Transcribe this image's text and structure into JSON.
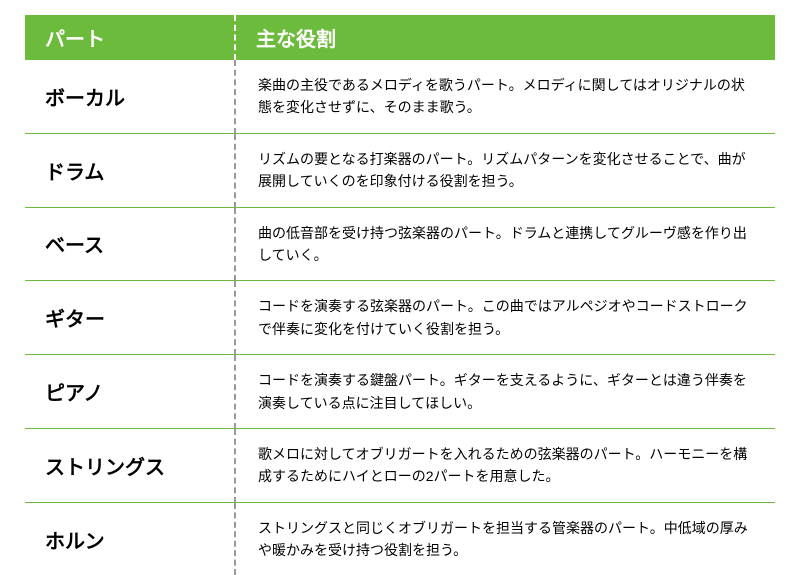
{
  "table": {
    "headers": {
      "part": "パート",
      "role": "主な役割"
    },
    "colors": {
      "header_bg": "#6cbb3c",
      "header_text": "#ffffff",
      "border": "#6cbb3c",
      "dashed_border": "#999999",
      "text": "#000000",
      "bg": "#ffffff"
    },
    "header_fontsize": 20,
    "part_fontsize": 20,
    "role_fontsize": 14,
    "col_widths": [
      "28%",
      "72%"
    ],
    "rows": [
      {
        "part": "ボーカル",
        "role": "楽曲の主役であるメロディを歌うパート。メロディに関してはオリジナルの状態を変化させずに、そのまま歌う。"
      },
      {
        "part": "ドラム",
        "role": "リズムの要となる打楽器のパート。リズムパターンを変化させることで、曲が展開していくのを印象付ける役割を担う。"
      },
      {
        "part": "ベース",
        "role": "曲の低音部を受け持つ弦楽器のパート。ドラムと連携してグルーヴ感を作り出していく。"
      },
      {
        "part": "ギター",
        "role": "コードを演奏する弦楽器のパート。この曲ではアルペジオやコードストロークで伴奏に変化を付けていく役割を担う。"
      },
      {
        "part": "ピアノ",
        "role": "コードを演奏する鍵盤パート。ギターを支えるように、ギターとは違う伴奏を演奏している点に注目してほしい。"
      },
      {
        "part": "ストリングス",
        "role": "歌メロに対してオブリガートを入れるための弦楽器のパート。ハーモニーを構成するためにハイとローの2パートを用意した。"
      },
      {
        "part": "ホルン",
        "role": "ストリングスと同じくオブリガートを担当する管楽器のパート。中低域の厚みや暖かみを受け持つ役割を担う。"
      }
    ]
  }
}
